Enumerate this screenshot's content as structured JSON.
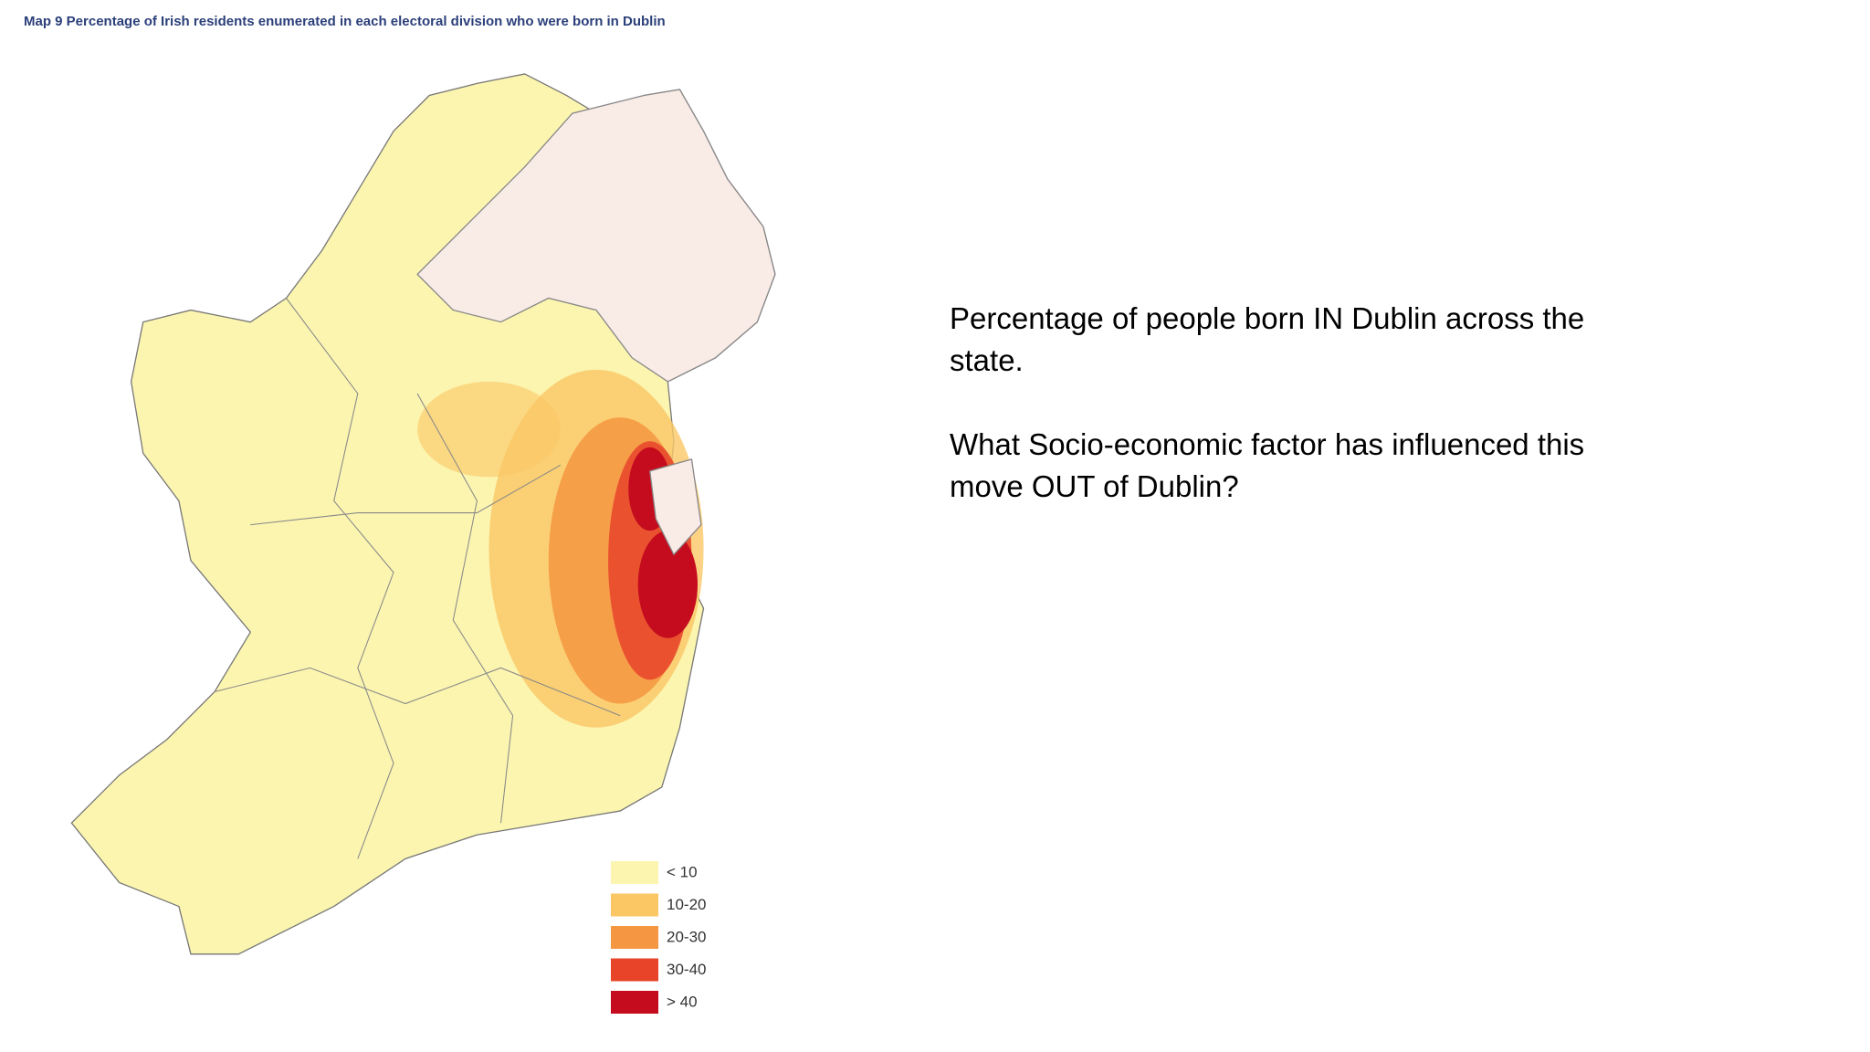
{
  "header": {
    "title": "Map 9  Percentage of Irish residents enumerated in each electoral division who were born in Dublin"
  },
  "legend": {
    "items": [
      {
        "label": "< 10",
        "color": "#fbf5b0"
      },
      {
        "label": "10-20",
        "color": "#fbc765"
      },
      {
        "label": "20-30",
        "color": "#f59742"
      },
      {
        "label": "30-40",
        "color": "#e8442a"
      },
      {
        "label": "> 40",
        "color": "#c50c1e"
      }
    ]
  },
  "text": {
    "paragraphs": [
      [
        "Percentage of people born IN Dublin across the",
        "state."
      ],
      [
        "What Socio-economic factor has influenced this",
        "move OUT of Dublin?"
      ]
    ]
  }
}
